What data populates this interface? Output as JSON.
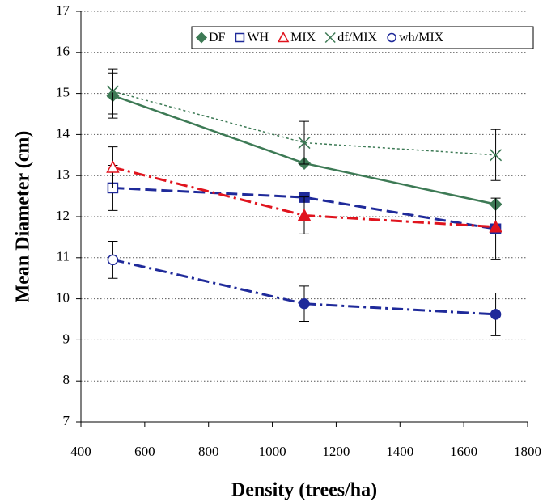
{
  "chart_data": {
    "type": "line",
    "x_label": "Density (trees/ha)",
    "y_label": "Mean Diameter (cm)",
    "x": [
      500,
      1100,
      1700
    ],
    "xlim": [
      400,
      1800
    ],
    "xticks": [
      400,
      600,
      800,
      1000,
      1200,
      1400,
      1600,
      1800
    ],
    "ylim": [
      7,
      17
    ],
    "yticks": [
      7,
      8,
      9,
      10,
      11,
      12,
      13,
      14,
      15,
      16,
      17
    ],
    "grid": true,
    "legend": "top-right",
    "series": [
      {
        "name": "DF",
        "color": "#3d7a55",
        "marker": "diamond",
        "filled": true,
        "dash": "solid",
        "width": 2.5,
        "values": [
          14.95,
          13.3,
          12.3
        ],
        "errors": [
          0.55,
          null,
          null
        ]
      },
      {
        "name": "WH",
        "color": "#1f2a9a",
        "marker": "square",
        "filled": false,
        "dash": "dashed",
        "width": 3,
        "values": [
          12.7,
          12.47,
          11.7
        ],
        "errors": [
          0.55,
          null,
          0.75
        ]
      },
      {
        "name": "MIX",
        "color": "#e0141e",
        "marker": "triangle",
        "filled": false,
        "dash": "dashdot",
        "width": 3,
        "values": [
          13.2,
          12.03,
          11.75
        ],
        "errors": [
          0.5,
          0.45,
          null
        ]
      },
      {
        "name": "df/MIX",
        "color": "#3d7a55",
        "marker": "x",
        "filled": false,
        "dash": "dotted",
        "width": 1.5,
        "values": [
          15.05,
          13.8,
          13.5
        ],
        "errors": [
          0.55,
          0.52,
          0.62
        ]
      },
      {
        "name": "wh/MIX",
        "color": "#1f2a9a",
        "marker": "circle",
        "filled": false,
        "dash": "dashdot",
        "width": 3,
        "values": [
          10.95,
          9.88,
          9.62
        ],
        "errors": [
          0.45,
          0.43,
          0.52
        ]
      }
    ]
  }
}
